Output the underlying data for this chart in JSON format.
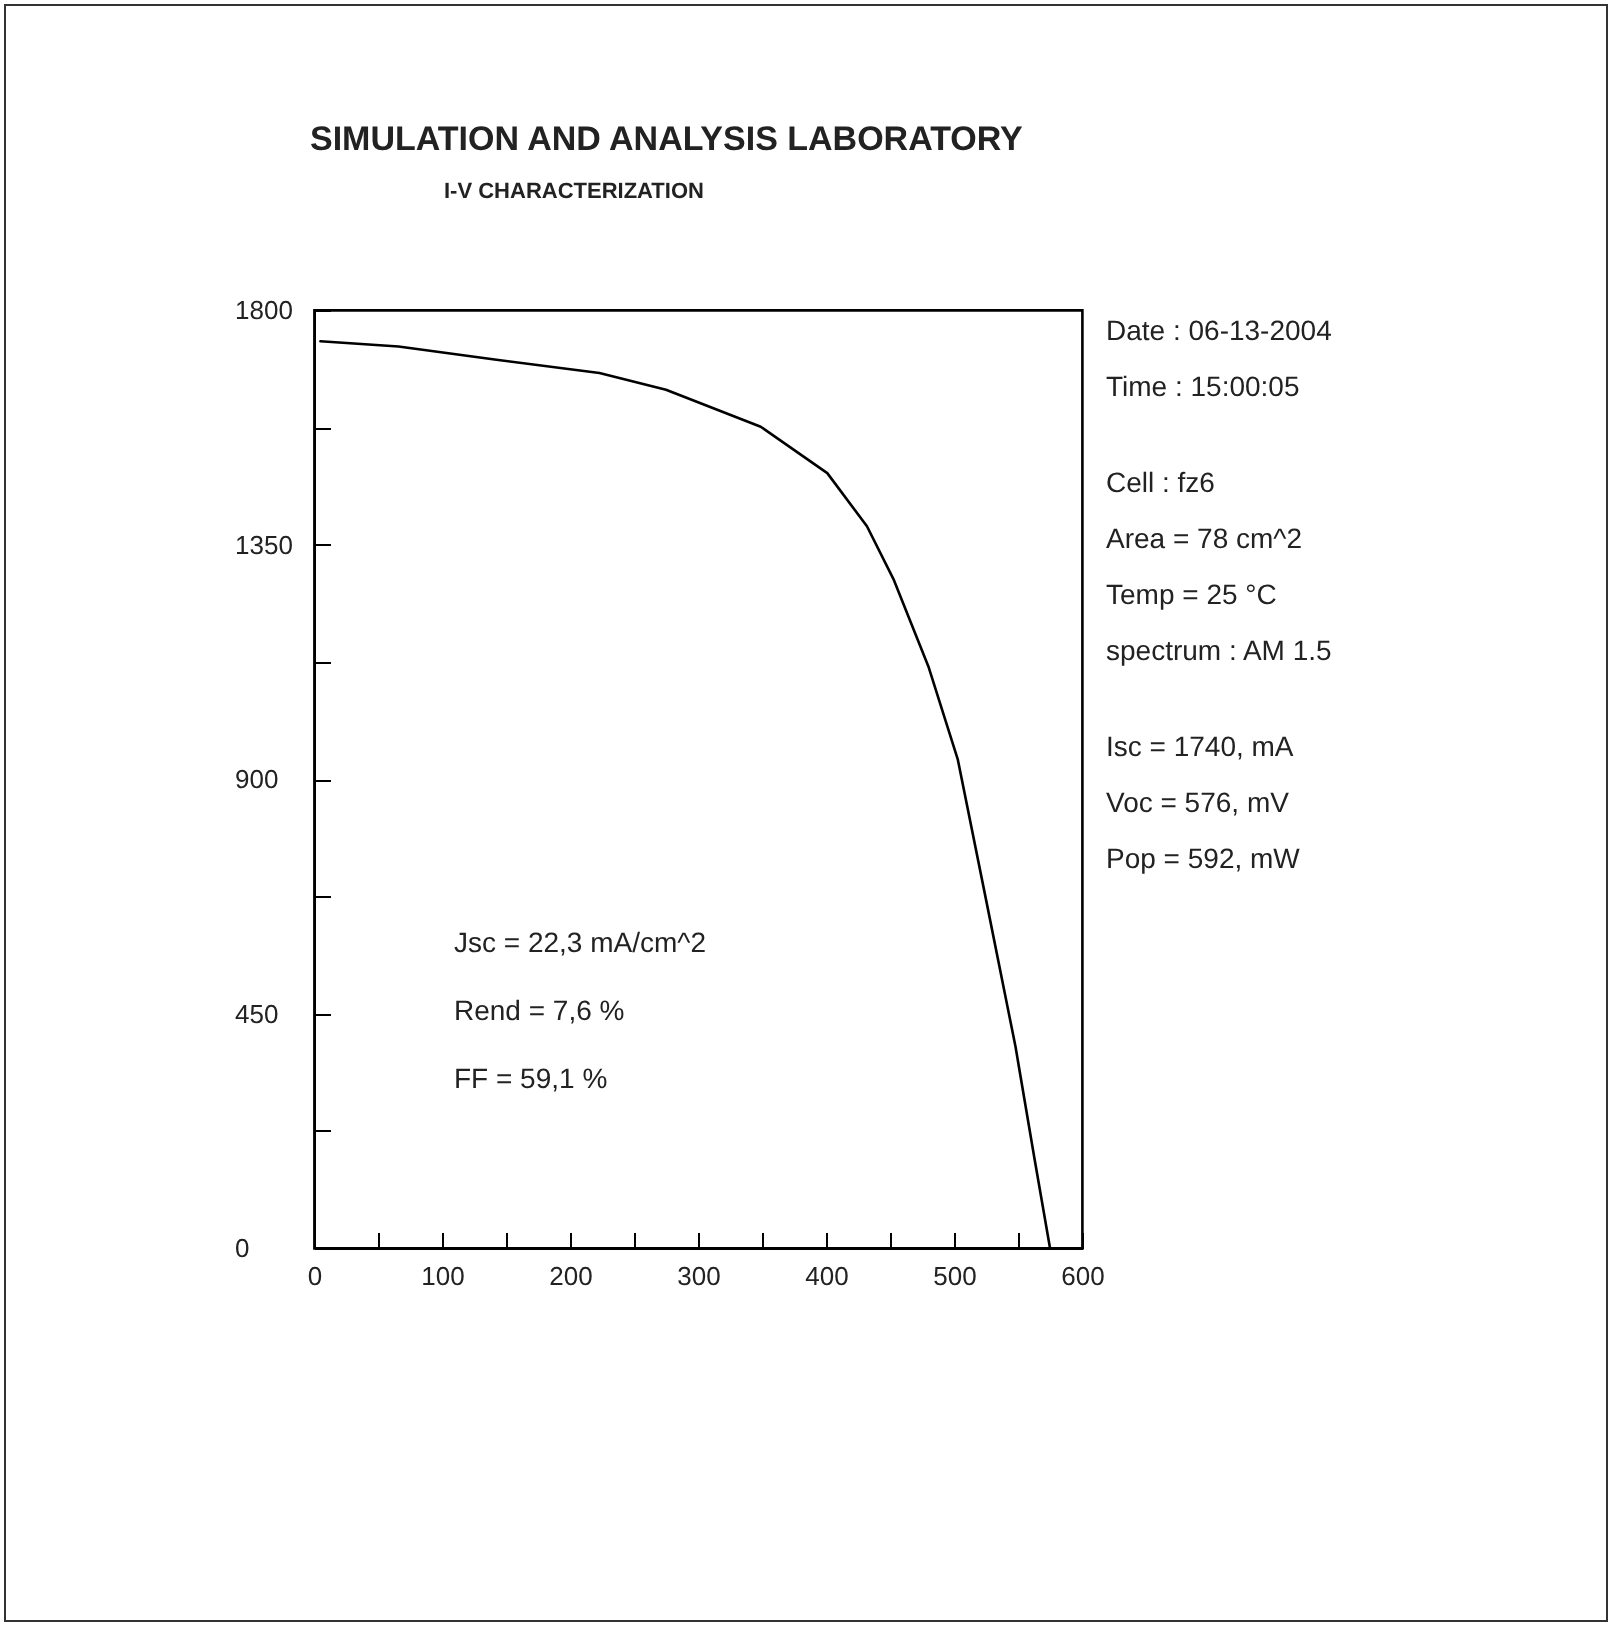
{
  "chart_data": {
    "type": "line",
    "title": "SIMULATION AND ANALYSIS LABORATORY",
    "subtitle": "I-V CHARACTERIZATION",
    "x": [
      5,
      66,
      144,
      223,
      275,
      349,
      401,
      432,
      453,
      480,
      503,
      524,
      548,
      563,
      575
    ],
    "series": [
      {
        "color": "#000000",
        "values": [
          1740,
          1730,
          1704,
          1679,
          1647,
          1576,
          1487,
          1385,
          1282,
          1116,
          937,
          681,
          387,
          170,
          0
        ]
      }
    ],
    "xlim": [
      0,
      600
    ],
    "xticks": [
      0,
      {
        "value": 50,
        "label": null
      },
      100,
      {
        "value": 150,
        "label": null
      },
      200,
      {
        "value": 250,
        "label": null
      },
      300,
      {
        "value": 350,
        "label": null
      },
      400,
      {
        "value": 450,
        "label": null
      },
      500,
      {
        "value": 550,
        "label": null
      },
      600
    ],
    "ylim": [
      0,
      1800
    ],
    "yticks": [
      0,
      {
        "value": 225,
        "label": null
      },
      450,
      {
        "value": 675,
        "label": null
      },
      900,
      {
        "value": 1125,
        "label": null
      },
      1350,
      {
        "value": 1575,
        "label": null
      },
      1800
    ],
    "grid": false,
    "marker": "none",
    "line_style": "solid",
    "annotations": [
      "Date : 06-13-2004",
      "Time : 15:00:05",
      "Cell : fz6",
      "Area =  78 cm^2",
      "Temp =  25 °C",
      "spectrum : AM 1.5",
      "Isc =    1740, mA",
      "Voc =  576,  mV",
      "Pop =  592,     mW",
      "Jsc = 22,3  mA/cm^2",
      "Rend =  7,6   %",
      "FF =  59,1 %"
    ]
  }
}
